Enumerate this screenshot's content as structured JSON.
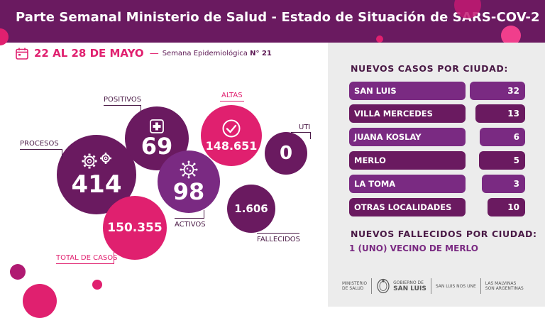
{
  "header": {
    "title": "Parte Semanal Ministerio de Salud - Estado de Situación de SARS-COV-2"
  },
  "dates": {
    "range": "22 AL 28 DE MAYO",
    "dash": "—",
    "week_prefix": "Semana Epidemiológica ",
    "week_number": "N° 21",
    "icon": "calendar-icon"
  },
  "stats": {
    "procesos": {
      "label": "PROCESOS",
      "value": "414",
      "icon": "gears-icon"
    },
    "positivos": {
      "label": "POSITIVOS",
      "value": "69",
      "icon": "medical-cross-icon"
    },
    "altas": {
      "label": "ALTAS",
      "value": "148.651",
      "icon": "check-circle-icon"
    },
    "uti": {
      "label": "UTI",
      "value": "0"
    },
    "activos": {
      "label": "ACTIVOS",
      "value": "98",
      "icon": "virus-icon"
    },
    "total": {
      "label": "TOTAL DE CASOS",
      "value": "150.355"
    },
    "fallecidos": {
      "label": "FALLECIDOS",
      "value": "1.606"
    }
  },
  "nuevos_casos": {
    "title": "NUEVOS CASOS POR CIUDAD:",
    "cities": [
      {
        "name": "SAN LUIS",
        "value": "32"
      },
      {
        "name": "VILLA MERCEDES",
        "value": "13"
      },
      {
        "name": "JUANA KOSLAY",
        "value": "6"
      },
      {
        "name": "MERLO",
        "value": "5"
      },
      {
        "name": "LA TOMA",
        "value": "3"
      },
      {
        "name": "OTRAS LOCALIDADES",
        "value": "10"
      }
    ]
  },
  "fallecidos_ciudad": {
    "title": "NUEVOS FALLECIDOS POR CIUDAD:",
    "text": "1 (UNO) VECINO DE MERLO"
  },
  "footer": {
    "ministerio_1": "MINISTERIO",
    "ministerio_2": "DE SALUD",
    "gobierno_1": "GOBIERNO DE",
    "gobierno_2": "SAN LUIS",
    "slogan": "SAN LUIS NOS UNE",
    "malvinas_1": "LAS MALVINAS",
    "malvinas_2": "SON ARGENTINAS",
    "seal": "provincial-seal-icon"
  },
  "colors": {
    "header": "#6a1a60",
    "pink": "#e0206f",
    "purple": "#6a1a60",
    "violet": "#7a2a82",
    "panel": "#ececec"
  }
}
